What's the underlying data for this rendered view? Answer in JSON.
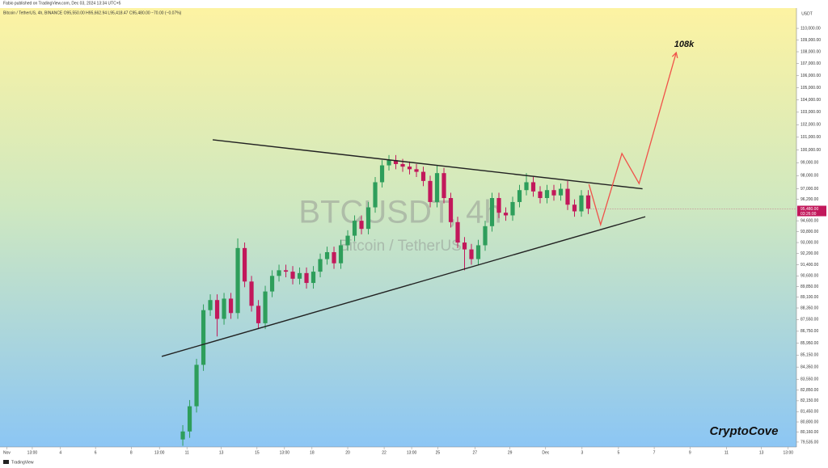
{
  "chart_data": {
    "type": "candlestick",
    "header": "Fabio published on TradingView.com, Dec 03, 2024 13:34 UTC+5",
    "subtitle": "Bitcoin / TetherUS, 4h, BINANCE  O95,550.00 H95,662.94 L95,418.47 C95,480.00 −70.00 (−0.07%)",
    "watermark": "BTCUSDT, 4h",
    "watermark_sub": "Bitcoin / TetherUS",
    "currency": "USDT",
    "annotation": "108k",
    "signature": "CryptoCove",
    "footer": "TradingView",
    "log_scale": true,
    "up_color": "#2e9e5b",
    "down_color": "#c2185b",
    "line_color": "#222222",
    "projection_color": "#f0524a",
    "xlim": [
      -26.6,
      89.3
    ],
    "ylim": [
      79230,
      111760
    ],
    "open": [
      79700,
      80200,
      81800,
      84500,
      88200,
      88900,
      87600,
      89000,
      88000,
      92600,
      90200,
      88500,
      87300,
      89500,
      90600,
      91000,
      90900,
      90400,
      90800,
      90100,
      90900,
      91800,
      92300,
      91500,
      92800,
      93500,
      94600,
      94000,
      95600,
      97500,
      98800,
      99200,
      98900,
      98700,
      98500,
      98300,
      97600,
      96000,
      98200,
      96300,
      94500,
      93000,
      92500,
      91800,
      92800,
      94200,
      96300,
      95200,
      95000,
      96000,
      96900,
      97500,
      96800,
      96300,
      96900,
      96500,
      97000,
      95800,
      95300,
      96500
    ],
    "high": [
      80600,
      82200,
      84900,
      88600,
      89300,
      89300,
      89400,
      89400,
      93300,
      93000,
      90600,
      88900,
      89900,
      91000,
      91400,
      91400,
      91300,
      91200,
      91200,
      91300,
      92200,
      92700,
      92700,
      93200,
      93900,
      95000,
      95000,
      96000,
      97900,
      99200,
      99600,
      99600,
      99300,
      99100,
      98900,
      98700,
      98000,
      98800,
      98600,
      96700,
      94900,
      93400,
      92900,
      93200,
      94600,
      96700,
      96700,
      95600,
      96400,
      97300,
      98200,
      97900,
      97200,
      97300,
      97300,
      97400,
      97600,
      96200,
      96900,
      96900
    ],
    "low": [
      79300,
      79800,
      81400,
      84100,
      87800,
      86400,
      87200,
      87600,
      87600,
      89800,
      88100,
      86900,
      86900,
      89100,
      90200,
      90500,
      90000,
      90000,
      89700,
      89700,
      90500,
      91400,
      91100,
      91100,
      92400,
      93100,
      93600,
      93600,
      95200,
      97100,
      98400,
      98500,
      98300,
      98100,
      97900,
      97200,
      95600,
      95600,
      95900,
      94100,
      92600,
      91000,
      91400,
      91400,
      92400,
      93800,
      94800,
      94600,
      94600,
      95600,
      96500,
      96400,
      95900,
      95900,
      96100,
      96100,
      95400,
      94900,
      94900,
      95100
    ],
    "close": [
      80200,
      81800,
      84500,
      88200,
      88900,
      87600,
      89000,
      88000,
      92600,
      90200,
      88500,
      87300,
      89500,
      90600,
      91000,
      90900,
      90400,
      90800,
      90100,
      90900,
      91800,
      92300,
      91500,
      92800,
      93500,
      94600,
      94000,
      95600,
      97500,
      98800,
      99200,
      98900,
      98700,
      98500,
      98300,
      97600,
      96000,
      98200,
      96300,
      94500,
      93000,
      92500,
      91800,
      92800,
      94200,
      96300,
      95200,
      95000,
      96000,
      96900,
      97500,
      96800,
      96300,
      96900,
      96500,
      97000,
      95800,
      95300,
      96500,
      95500
    ],
    "trendlines": [
      {
        "x": [
          4.35,
          66.9
        ],
        "y": [
          100800,
          97000
        ]
      },
      {
        "x": [
          -3.06,
          67.3
        ],
        "y": [
          85060,
          94900
        ]
      }
    ],
    "projection": {
      "x": [
        59.1,
        60.8,
        63.9,
        66.4,
        71.8
      ],
      "y": [
        97350,
        94310,
        99720,
        97400,
        107930
      ]
    },
    "last_price": {
      "value": 95480,
      "label": "95,480.00",
      "countdown": "03:26:00"
    },
    "xticks": [
      {
        "value": -25.6,
        "label": "Nov"
      },
      {
        "value": -21.9,
        "label": "13:00"
      },
      {
        "value": -17.8,
        "label": "4"
      },
      {
        "value": -12.7,
        "label": "6"
      },
      {
        "value": -7.5,
        "label": "8"
      },
      {
        "value": -3.4,
        "label": "13:00"
      },
      {
        "value": 0.6,
        "label": "11"
      },
      {
        "value": 5.6,
        "label": "13"
      },
      {
        "value": 10.8,
        "label": "15"
      },
      {
        "value": 14.8,
        "label": "13:00"
      },
      {
        "value": 18.8,
        "label": "18"
      },
      {
        "value": 24,
        "label": "20"
      },
      {
        "value": 29.3,
        "label": "22"
      },
      {
        "value": 33.3,
        "label": "13:00"
      },
      {
        "value": 37.1,
        "label": "25"
      },
      {
        "value": 42.5,
        "label": "27"
      },
      {
        "value": 47.6,
        "label": "29"
      },
      {
        "value": 52.8,
        "label": "Dec"
      },
      {
        "value": 58.1,
        "label": "3"
      },
      {
        "value": 63.4,
        "label": "5"
      },
      {
        "value": 68.6,
        "label": "7"
      },
      {
        "value": 73.8,
        "label": "9"
      },
      {
        "value": 79.1,
        "label": "11"
      },
      {
        "value": 84.2,
        "label": "13"
      },
      {
        "value": 88.1,
        "label": "13:00"
      }
    ],
    "yticks": [
      {
        "value": 110000,
        "label": "110,000.00"
      },
      {
        "value": 109000,
        "label": "109,000.00"
      },
      {
        "value": 108000,
        "label": "108,000.00"
      },
      {
        "value": 107000,
        "label": "107,000.00"
      },
      {
        "value": 106000,
        "label": "106,000.00"
      },
      {
        "value": 105000,
        "label": "105,000.00"
      },
      {
        "value": 104000,
        "label": "104,000.00"
      },
      {
        "value": 103000,
        "label": "103,000.00"
      },
      {
        "value": 102000,
        "label": "102,000.00"
      },
      {
        "value": 101000,
        "label": "101,000.00"
      },
      {
        "value": 100000,
        "label": "100,000.00"
      },
      {
        "value": 99000,
        "label": "99,000.00"
      },
      {
        "value": 98000,
        "label": "98,000.00"
      },
      {
        "value": 97000,
        "label": "97,000.00"
      },
      {
        "value": 96200,
        "label": "96,200.00"
      },
      {
        "value": 94600,
        "label": "94,600.00"
      },
      {
        "value": 93800,
        "label": "93,800.00"
      },
      {
        "value": 93000,
        "label": "93,000.00"
      },
      {
        "value": 92200,
        "label": "92,200.00"
      },
      {
        "value": 91400,
        "label": "91,400.00"
      },
      {
        "value": 90600,
        "label": "90,600.00"
      },
      {
        "value": 89850,
        "label": "89,850.00"
      },
      {
        "value": 89100,
        "label": "89,100.00"
      },
      {
        "value": 88350,
        "label": "88,350.00"
      },
      {
        "value": 87550,
        "label": "87,550.00"
      },
      {
        "value": 86750,
        "label": "86,750.00"
      },
      {
        "value": 85950,
        "label": "85,950.00"
      },
      {
        "value": 85150,
        "label": "85,150.00"
      },
      {
        "value": 84350,
        "label": "84,350.00"
      },
      {
        "value": 83550,
        "label": "83,550.00"
      },
      {
        "value": 82850,
        "label": "82,850.00"
      },
      {
        "value": 82150,
        "label": "82,150.00"
      },
      {
        "value": 81450,
        "label": "81,450.00"
      },
      {
        "value": 80800,
        "label": "80,800.00"
      },
      {
        "value": 80160,
        "label": "80,160.00"
      },
      {
        "value": 79535,
        "label": "79,535.00"
      }
    ]
  }
}
